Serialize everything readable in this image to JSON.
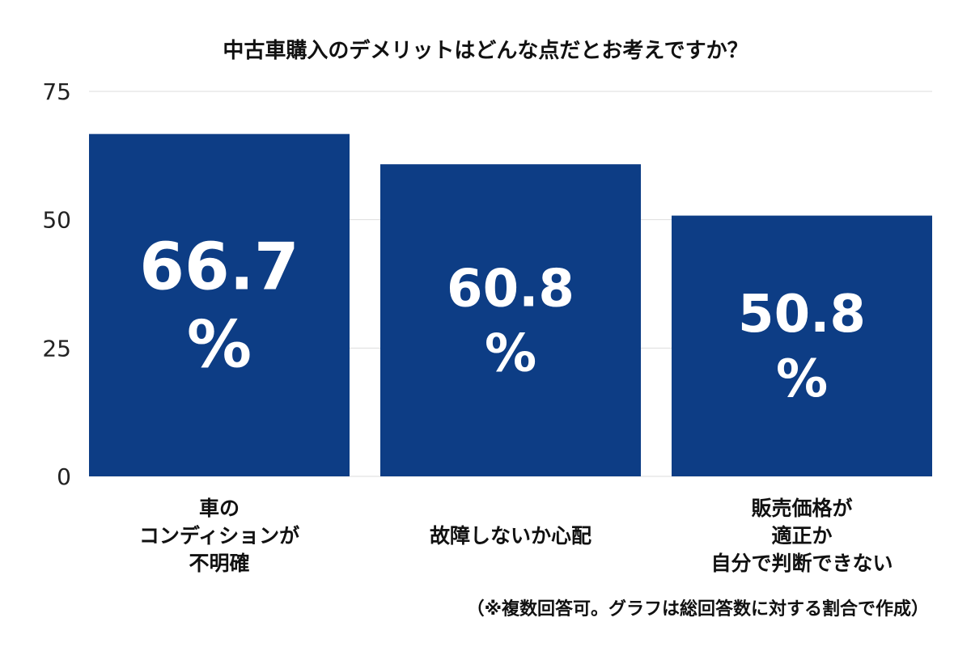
{
  "chart_data": {
    "type": "bar",
    "title": "中古車購入のデメリットはどんな点だとお考えですか？",
    "categories": [
      [
        "車の",
        "コンディションが",
        "不明確"
      ],
      [
        "故障しないか心配"
      ],
      [
        "販売価格が",
        "適正か",
        "自分で判断できない"
      ]
    ],
    "values": [
      66.7,
      60.8,
      50.8
    ],
    "value_labels": [
      "66.7",
      "60.8",
      "50.8"
    ],
    "unit": "%",
    "xlabel": "",
    "ylabel": "",
    "ylim": [
      0,
      75
    ],
    "yticks": [
      0,
      25,
      50,
      75
    ],
    "grid": true,
    "legend": "none",
    "bar_color": "#0d3d85",
    "grid_color": "#dddddd",
    "label_color": "#ffffff"
  },
  "footnote": "（※複数回答可。グラフは総回答数に対する割合で作成）"
}
